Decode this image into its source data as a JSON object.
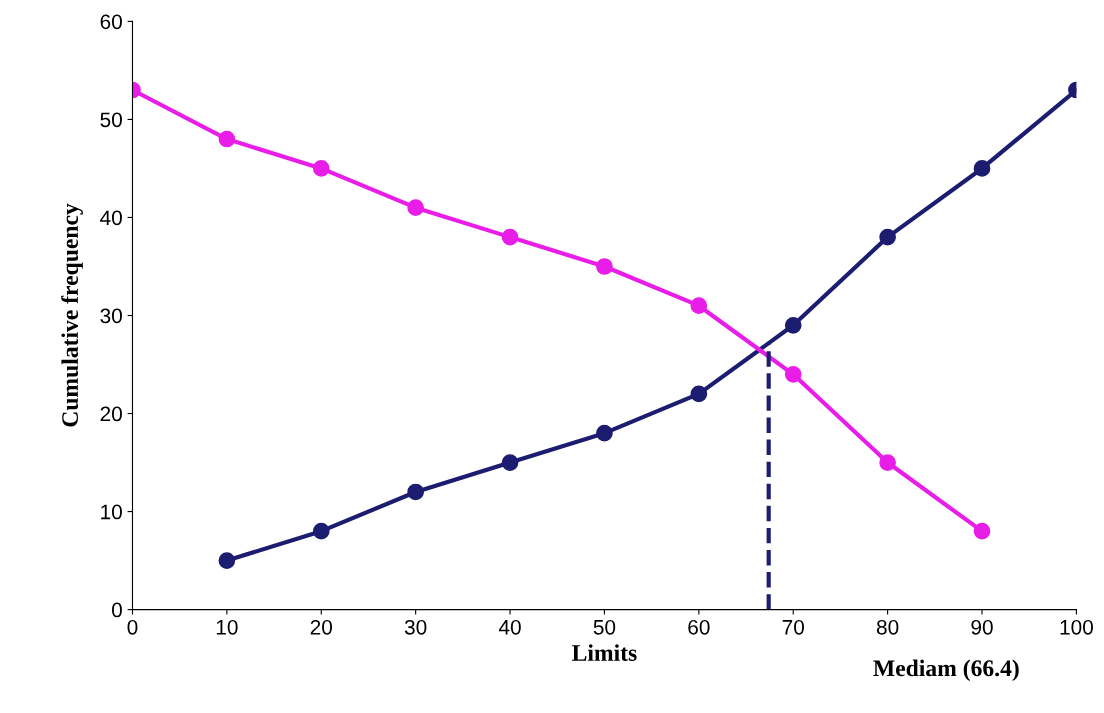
{
  "chart_data": {
    "type": "line",
    "xlabel": "Limits",
    "ylabel": "Cumulative frequency",
    "xlim": [
      0,
      100
    ],
    "ylim": [
      0,
      60
    ],
    "xticks": [
      0,
      10,
      20,
      30,
      40,
      50,
      60,
      70,
      80,
      90,
      100
    ],
    "yticks": [
      0,
      10,
      20,
      30,
      40,
      50,
      60
    ],
    "marker": "circle",
    "line_style": "solid",
    "grid": false,
    "legend": false,
    "series": [
      {
        "color": "#1c1c70",
        "x": [
          10,
          20,
          30,
          40,
          50,
          60,
          70,
          80,
          90,
          100
        ],
        "values": [
          5,
          8,
          12,
          15,
          18,
          22,
          29,
          38,
          45,
          53
        ]
      },
      {
        "color": "#e81ee8",
        "x": [
          0,
          10,
          20,
          30,
          40,
          50,
          60,
          70,
          80,
          90
        ],
        "values": [
          53,
          48,
          45,
          41,
          38,
          35,
          31,
          24,
          15,
          8
        ]
      }
    ],
    "ref_lines": [
      {
        "axis": "x",
        "value": 67.4,
        "color": "#1c1c70",
        "line_style": "dashed"
      }
    ],
    "annotations": [
      "Mediam (66.4)"
    ]
  }
}
